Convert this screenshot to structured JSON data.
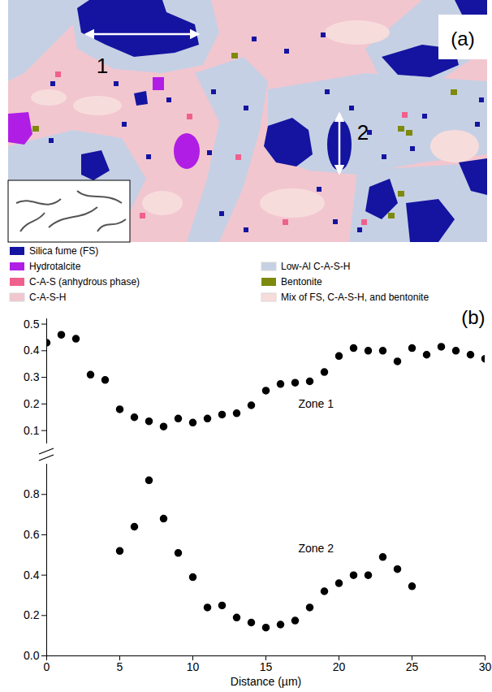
{
  "chart_data": [
    {
      "type": "map",
      "panel_label": "(a)",
      "annotations": [
        "1",
        "2"
      ],
      "legend": "bottom",
      "series": [
        {
          "name": "Silica fume (FS)",
          "color": "#1414a0"
        },
        {
          "name": "Hydrotalcite",
          "color": "#b01ee6"
        },
        {
          "name": "C-A-S (anhydrous phase)",
          "color": "#f0608c"
        },
        {
          "name": "C-A-S-H",
          "color": "#f2c6cf"
        },
        {
          "name": "Low-Al C-A-S-H",
          "color": "#c6d0e4"
        },
        {
          "name": "Bentonite",
          "color": "#7d8a0e"
        },
        {
          "name": "Mix of FS, C-A-S-H, and bentonite",
          "color": "#f7dcdc"
        }
      ]
    },
    {
      "type": "scatter",
      "panel_label": "(b)",
      "annotation": "Zone 1",
      "tick_labels": "y",
      "color": "#000000",
      "marker": "circle",
      "x": [
        0,
        1,
        2,
        3,
        4,
        5,
        6,
        7,
        8,
        9,
        10,
        11,
        12,
        13,
        14,
        15,
        16,
        17,
        18,
        19,
        20,
        21,
        22,
        23,
        24,
        25,
        26,
        27,
        28,
        29,
        30
      ],
      "values": [
        0.43,
        0.46,
        0.445,
        0.31,
        0.29,
        0.18,
        0.15,
        0.135,
        0.115,
        0.145,
        0.13,
        0.145,
        0.16,
        0.165,
        0.195,
        0.25,
        0.275,
        0.28,
        0.285,
        0.32,
        0.38,
        0.41,
        0.4,
        0.4,
        0.36,
        0.41,
        0.385,
        0.415,
        0.4,
        0.385,
        0.37
      ],
      "xlim": [
        0,
        30
      ],
      "xticks": [
        0,
        5,
        10,
        15,
        20,
        25,
        30
      ],
      "ylim": [
        0.05,
        0.52
      ],
      "yticks": [
        0.1,
        0.2,
        0.3,
        0.4,
        0.5
      ]
    },
    {
      "type": "scatter",
      "annotation": "Zone 2",
      "xlabel": "Distance (µm)",
      "color": "#000000",
      "marker": "circle",
      "x": [
        5,
        6,
        7,
        8,
        9,
        10,
        11,
        12,
        13,
        14,
        15,
        16,
        17,
        18,
        19,
        20,
        21,
        22,
        23,
        24,
        25
      ],
      "values": [
        0.52,
        0.64,
        0.87,
        0.68,
        0.51,
        0.39,
        0.24,
        0.25,
        0.19,
        0.165,
        0.14,
        0.155,
        0.175,
        0.24,
        0.32,
        0.36,
        0.4,
        0.4,
        0.49,
        0.43,
        0.345
      ],
      "xlim": [
        0,
        30
      ],
      "xticks": [
        0,
        5,
        10,
        15,
        20,
        25,
        30
      ],
      "ylim": [
        0,
        0.95
      ],
      "yticks": [
        {
          "value": 0,
          "label": "0.0"
        },
        {
          "value": 0.2,
          "label": "0.2"
        },
        {
          "value": 0.4,
          "label": "0.4"
        },
        {
          "value": 0.6,
          "label": "0.6"
        },
        {
          "value": 0.8,
          "label": "0.8"
        }
      ]
    }
  ]
}
